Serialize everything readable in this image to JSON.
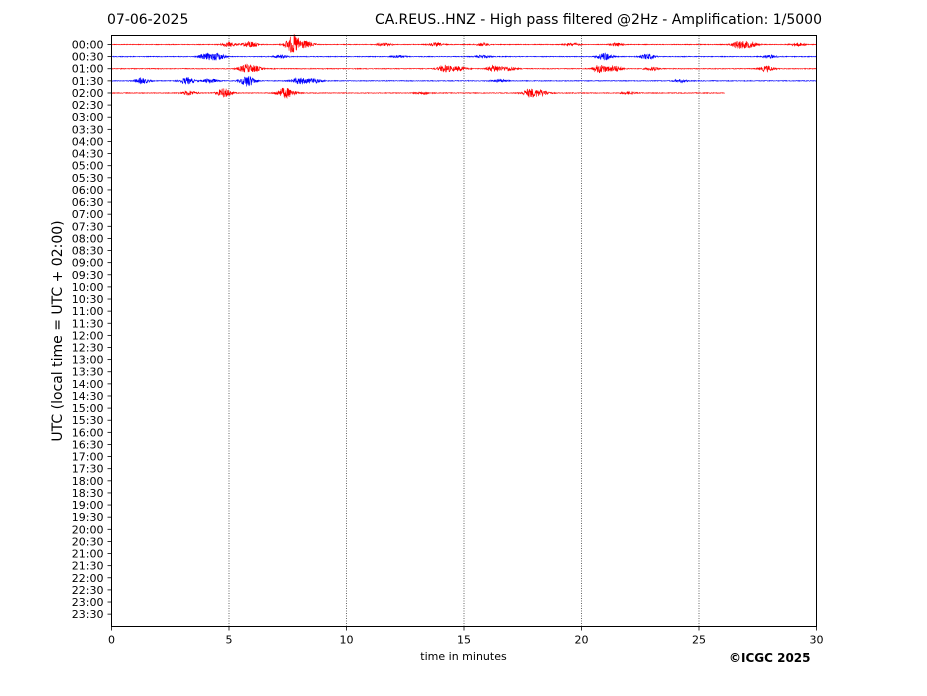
{
  "header": {
    "date": "07-06-2025",
    "title": "CA.REUS..HNZ - High pass filtered @2Hz - Amplification: 1/5000"
  },
  "footer": {
    "copyright": "©ICGC 2025"
  },
  "chart_data": {
    "type": "line",
    "title": "CA.REUS..HNZ - High pass filtered @2Hz - Amplification: 1/5000",
    "xlabel": "time in minutes",
    "ylabel": "UTC (local time = UTC + 02:00)",
    "xlim": [
      0,
      30
    ],
    "xticks": [
      0,
      5,
      10,
      15,
      20,
      25,
      30
    ],
    "vgrid": [
      5,
      10,
      15,
      20,
      25
    ],
    "yticks": [
      "00:00",
      "00:30",
      "01:00",
      "01:30",
      "02:00",
      "02:30",
      "03:00",
      "03:30",
      "04:00",
      "04:30",
      "05:00",
      "05:30",
      "06:00",
      "06:30",
      "07:00",
      "07:30",
      "08:00",
      "08:30",
      "09:00",
      "09:30",
      "10:00",
      "10:30",
      "11:00",
      "11:30",
      "12:00",
      "12:30",
      "13:00",
      "13:30",
      "14:00",
      "14:30",
      "15:00",
      "15:30",
      "16:00",
      "16:30",
      "17:00",
      "17:30",
      "18:00",
      "18:30",
      "19:00",
      "19:30",
      "20:00",
      "20:30",
      "21:00",
      "21:30",
      "22:00",
      "22:30",
      "23:00",
      "23:30"
    ],
    "series": [
      {
        "row": "00:00",
        "color": "#ff0000",
        "start": 0,
        "end": 30,
        "bursts": [
          [
            5.0,
            0.8
          ],
          [
            5.9,
            1.2
          ],
          [
            7.7,
            2.0
          ],
          [
            7.8,
            1.5
          ],
          [
            8.3,
            1.1
          ],
          [
            11.6,
            0.5
          ],
          [
            13.8,
            0.6
          ],
          [
            15.8,
            0.5
          ],
          [
            19.6,
            0.5
          ],
          [
            21.5,
            0.5
          ],
          [
            26.7,
            1.4
          ],
          [
            27.2,
            1.0
          ],
          [
            29.2,
            0.6
          ]
        ]
      },
      {
        "row": "00:30",
        "color": "#0000ff",
        "start": 0,
        "end": 30,
        "bursts": [
          [
            4.0,
            1.0
          ],
          [
            4.5,
            1.3
          ],
          [
            7.2,
            0.6
          ],
          [
            12.2,
            0.5
          ],
          [
            15.8,
            0.5
          ],
          [
            21.0,
            1.4
          ],
          [
            22.8,
            1.0
          ],
          [
            28.0,
            0.6
          ]
        ]
      },
      {
        "row": "01:00",
        "color": "#ff0000",
        "start": 0,
        "end": 30,
        "bursts": [
          [
            5.7,
            1.3
          ],
          [
            6.1,
            0.9
          ],
          [
            14.2,
            1.3
          ],
          [
            14.8,
            0.8
          ],
          [
            16.3,
            1.2
          ],
          [
            16.9,
            0.8
          ],
          [
            20.8,
            1.5
          ],
          [
            21.4,
            1.1
          ],
          [
            23.0,
            0.6
          ],
          [
            27.9,
            1.0
          ]
        ]
      },
      {
        "row": "01:30",
        "color": "#0000ff",
        "start": 0,
        "end": 30,
        "bursts": [
          [
            1.3,
            1.0
          ],
          [
            3.2,
            1.2
          ],
          [
            4.2,
            0.8
          ],
          [
            5.8,
            2.0
          ],
          [
            8.0,
            1.2
          ],
          [
            8.6,
            0.9
          ],
          [
            16.5,
            0.5
          ],
          [
            24.2,
            0.5
          ]
        ]
      },
      {
        "row": "02:00",
        "color": "#ff0000",
        "start": 0,
        "end": 26.1,
        "bursts": [
          [
            3.3,
            0.8
          ],
          [
            4.8,
            1.6
          ],
          [
            7.3,
            1.4
          ],
          [
            7.6,
            0.9
          ],
          [
            13.3,
            0.5
          ],
          [
            17.8,
            1.5
          ],
          [
            18.3,
            1.1
          ],
          [
            22.0,
            0.5
          ]
        ]
      }
    ]
  }
}
